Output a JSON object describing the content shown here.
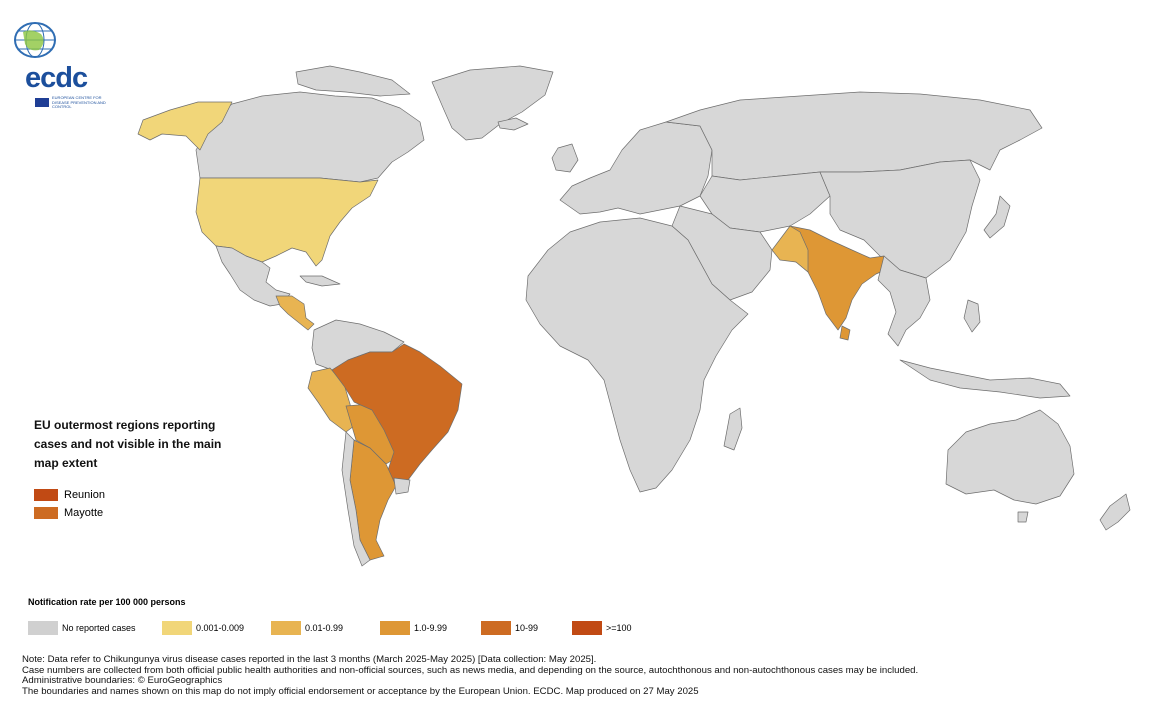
{
  "logo": {
    "wordmark": "ecdc",
    "subtitle": "EUROPEAN CENTRE FOR DISEASE PREVENTION AND CONTROL"
  },
  "colors": {
    "no_cases": "#d7d7d7",
    "band1": "#f1d679",
    "band2": "#e8b452",
    "band3": "#de9735",
    "band4": "#cd6b22",
    "band5": "#c14a14",
    "ocean": "#ffffff",
    "border": "#6e6e6e"
  },
  "outermost": {
    "title": "EU outermost regions reporting cases and not visible in the main map extent",
    "items": [
      {
        "label": "Reunion",
        "color": "#c14a14"
      },
      {
        "label": "Mayotte",
        "color": "#cd6b22"
      }
    ]
  },
  "legend": {
    "title": "Notification rate per 100 000 persons",
    "items": [
      {
        "label": "No reported cases",
        "color": "#d0d0d0"
      },
      {
        "label": "0.001-0.009",
        "color": "#f1d679"
      },
      {
        "label": "0.01-0.99",
        "color": "#e8b452"
      },
      {
        "label": "1.0-9.99",
        "color": "#de9735"
      },
      {
        "label": "10-99",
        "color": "#cd6b22"
      },
      {
        "label": ">=100",
        "color": "#c14a14"
      }
    ]
  },
  "notes": [
    "Note: Data refer to Chikungunya virus disease cases reported in the last 3 months (March 2025-May 2025) [Data collection: May 2025].",
    "Case numbers are collected from both official public health authorities and non-official sources, such as news media, and depending on the source, autochthonous and non-autochthonous cases may be included.",
    "Administrative boundaries: © EuroGeographics",
    "The boundaries and names shown on this map do not imply official endorsement or acceptance by the European Union. ECDC. Map produced on 27 May 2025"
  ]
}
